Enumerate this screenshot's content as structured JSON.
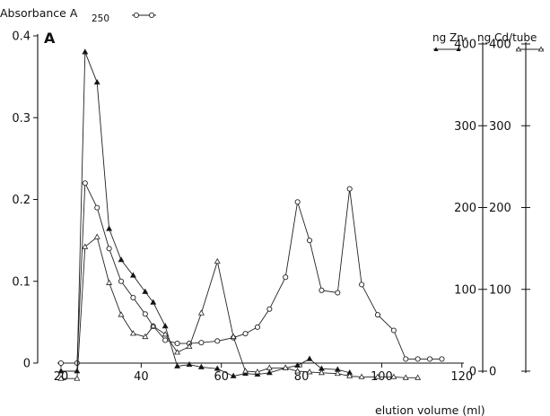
{
  "chart_data": {
    "type": "line",
    "panel_label": "A",
    "xlabel": "elution volume (ml)",
    "x_ticks": [
      20,
      40,
      60,
      80,
      100,
      120
    ],
    "xlim": [
      20,
      120
    ],
    "y_left": {
      "label": "Absorbance A",
      "label_sub": "250",
      "ticks": [
        "0",
        "0.1",
        "0.2",
        "0.3",
        "0.4"
      ],
      "tick_values": [
        0,
        0.1,
        0.2,
        0.3,
        0.4
      ],
      "ylim": [
        0,
        0.4
      ]
    },
    "y_right": {
      "label_zn": "ng Zn-",
      "label_cd": "ng Cd/tube",
      "ticks_zn": [
        "0",
        "100",
        "200",
        "300",
        "400"
      ],
      "ticks_cd": [
        "0",
        "100",
        "200",
        "300",
        "400"
      ],
      "tick_values": [
        0,
        100,
        200,
        300,
        400
      ],
      "ylim": [
        0,
        400
      ]
    },
    "series": [
      {
        "axis": "left",
        "marker": "circle-open",
        "x": [
          20,
          24,
          26,
          29,
          32,
          35,
          38,
          41,
          43,
          46,
          49,
          52,
          55,
          59,
          63,
          66,
          69,
          72,
          76,
          79,
          82,
          85,
          89,
          92,
          95,
          99,
          103,
          106,
          109,
          112,
          115
        ],
        "values": [
          0.0,
          0.0,
          0.22,
          0.19,
          0.14,
          0.1,
          0.08,
          0.06,
          0.045,
          0.028,
          0.024,
          0.024,
          0.025,
          0.027,
          0.031,
          0.036,
          0.044,
          0.066,
          0.105,
          0.197,
          0.15,
          0.089,
          0.086,
          0.213,
          0.096,
          0.059,
          0.04,
          0.005,
          0.005,
          0.005,
          0.005
        ]
      },
      {
        "axis": "right",
        "marker": "triangle-filled",
        "x": [
          20,
          24,
          26,
          29,
          32,
          35,
          38,
          41,
          43,
          46,
          49,
          52,
          55,
          59,
          63,
          66,
          69,
          72,
          76,
          79,
          82,
          85,
          89,
          92
        ],
        "values": [
          0,
          0,
          390,
          353,
          174,
          136,
          117,
          97,
          84,
          55,
          6,
          8,
          5,
          3,
          -6,
          -3,
          -4,
          -2,
          4,
          7,
          15,
          3,
          2,
          -2
        ]
      },
      {
        "axis": "right",
        "marker": "triangle-open",
        "x": [
          20,
          24,
          26,
          29,
          32,
          35,
          38,
          41,
          43,
          46,
          49,
          52,
          55,
          59,
          63,
          66,
          69,
          72,
          76,
          79,
          82,
          85,
          89,
          92,
          95,
          99,
          103,
          106,
          109
        ],
        "values": [
          -9,
          -9,
          152,
          164,
          108,
          69,
          46,
          42,
          55,
          45,
          23,
          30,
          71,
          134,
          42,
          0,
          -1,
          4,
          4,
          0,
          -1,
          -2,
          -3,
          -6,
          -7,
          -7,
          -7,
          -8,
          -8
        ]
      }
    ]
  }
}
